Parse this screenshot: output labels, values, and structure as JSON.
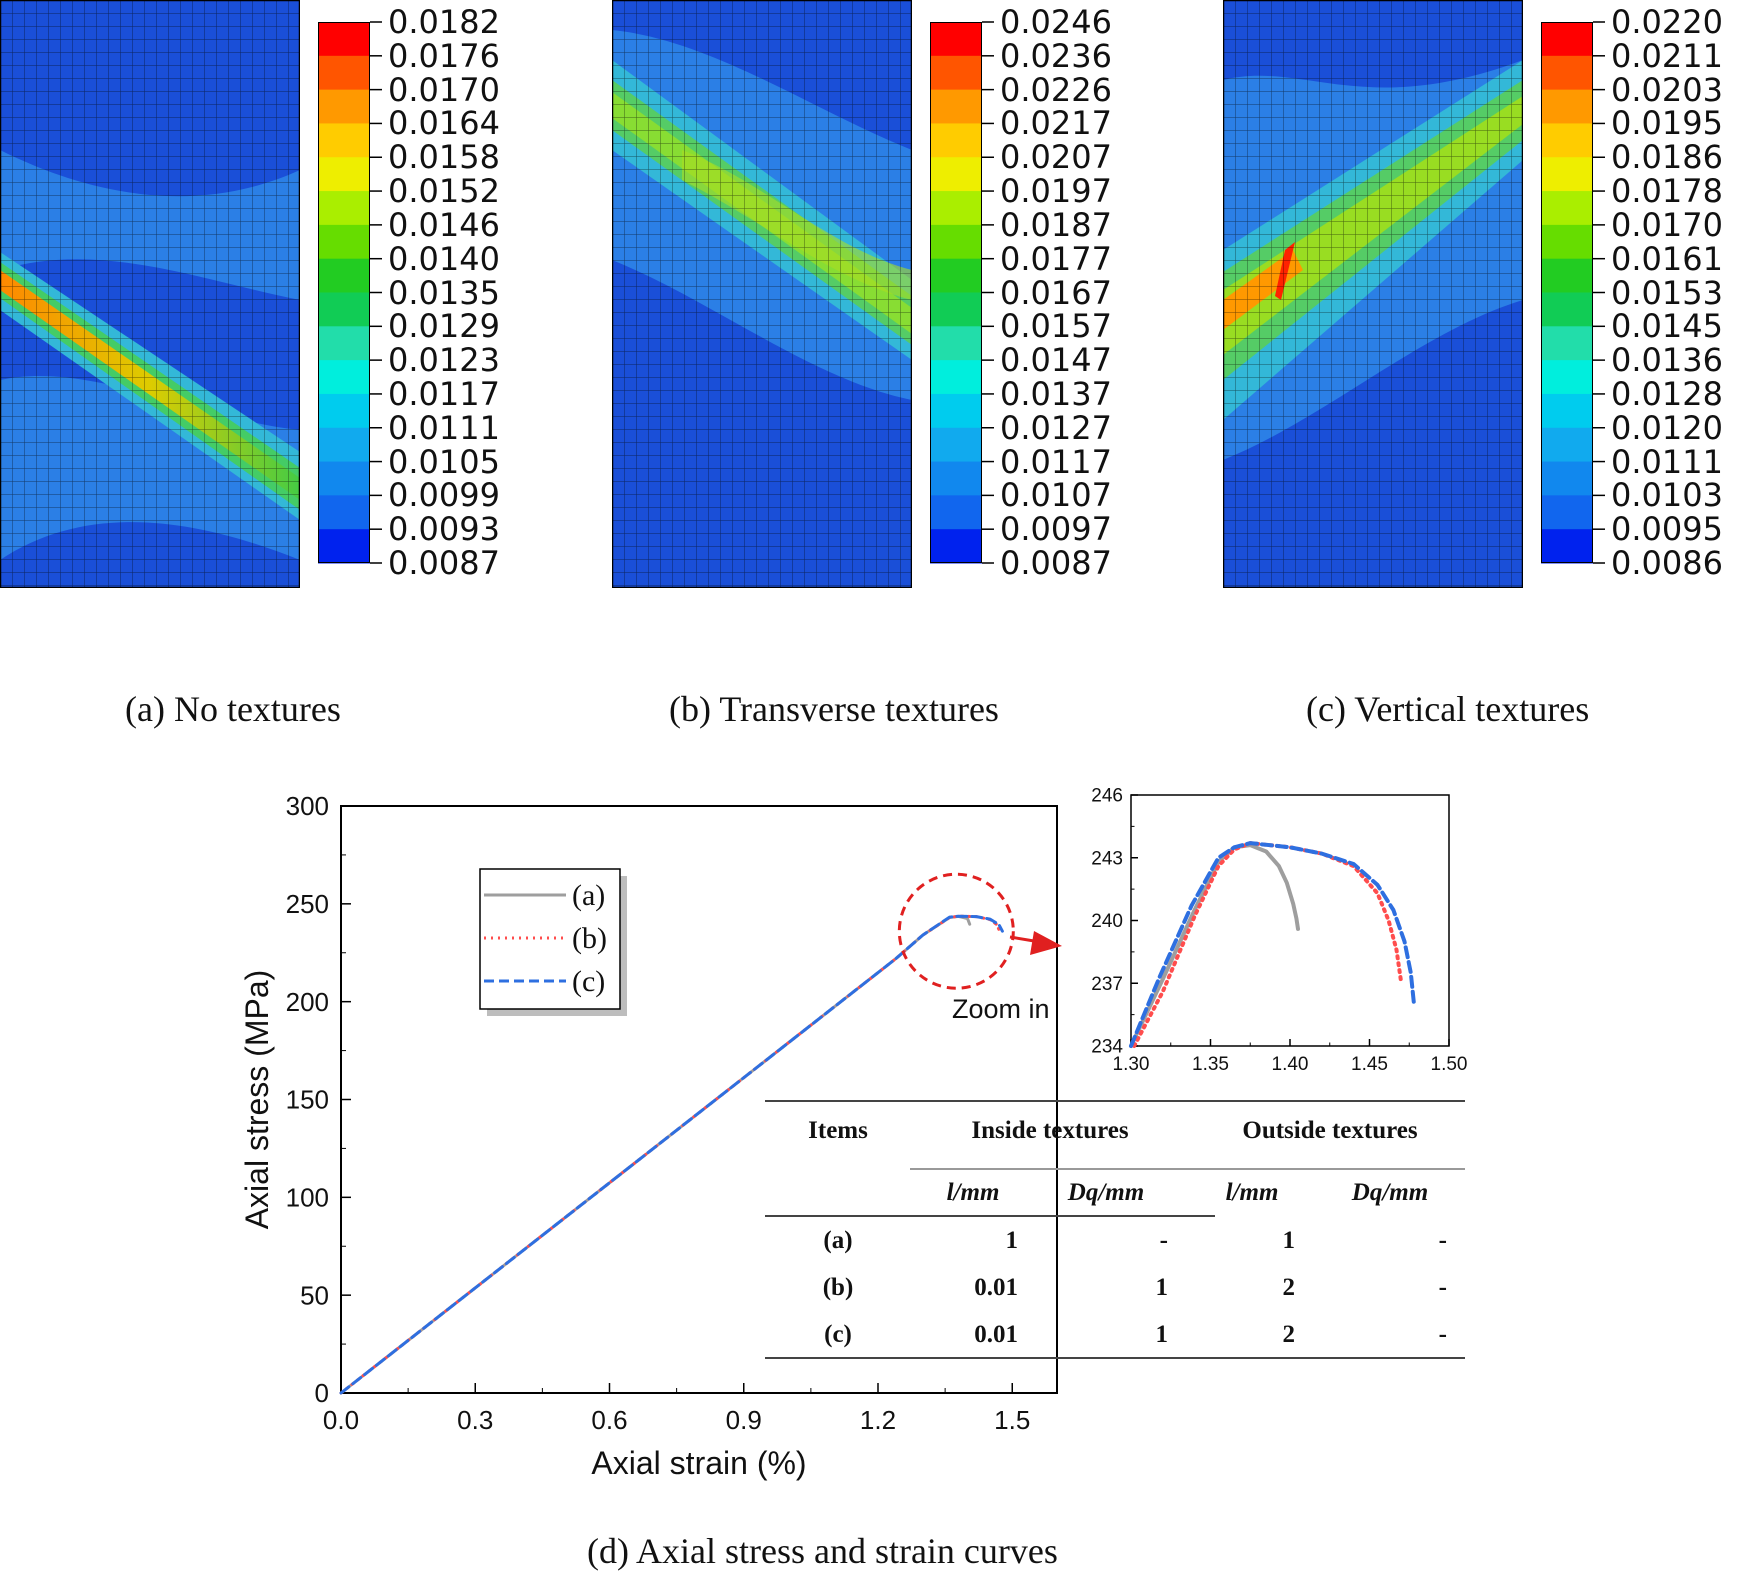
{
  "panels": [
    {
      "id": "a",
      "caption": "(a) No textures",
      "colorbar_labels": [
        "0.0182",
        "0.0176",
        "0.0170",
        "0.0164",
        "0.0158",
        "0.0152",
        "0.0146",
        "0.0140",
        "0.0135",
        "0.0129",
        "0.0123",
        "0.0117",
        "0.0111",
        "0.0105",
        "0.0099",
        "0.0093",
        "0.0087"
      ]
    },
    {
      "id": "b",
      "caption": "(b) Transverse textures",
      "colorbar_labels": [
        "0.0246",
        "0.0236",
        "0.0226",
        "0.0217",
        "0.0207",
        "0.0197",
        "0.0187",
        "0.0177",
        "0.0167",
        "0.0157",
        "0.0147",
        "0.0137",
        "0.0127",
        "0.0117",
        "0.0107",
        "0.0097",
        "0.0087"
      ]
    },
    {
      "id": "c",
      "caption": "(c) Vertical textures",
      "colorbar_labels": [
        "0.0220",
        "0.0211",
        "0.0203",
        "0.0195",
        "0.0186",
        "0.0178",
        "0.0170",
        "0.0161",
        "0.0153",
        "0.0145",
        "0.0136",
        "0.0128",
        "0.0120",
        "0.0111",
        "0.0103",
        "0.0095",
        "0.0086"
      ]
    }
  ],
  "colorbar_colors": [
    "#ff0000",
    "#ff5500",
    "#ff9900",
    "#ffcc00",
    "#eeee00",
    "#aaee00",
    "#66dd00",
    "#22cc22",
    "#11cc55",
    "#22ddaa",
    "#00eedd",
    "#00ccee",
    "#11aaee",
    "#1188ee",
    "#1166ee",
    "#0022ee"
  ],
  "caption_d": "(d) Axial stress and strain curves",
  "chart_data": [
    {
      "type": "line",
      "title": "",
      "xlabel": "Axial strain (%)",
      "ylabel": "Axial stress (MPa)",
      "xlim": [
        0,
        1.6
      ],
      "ylim": [
        0,
        300
      ],
      "xticks": [
        "0.0",
        "0.3",
        "0.6",
        "0.9",
        "1.2",
        "1.5"
      ],
      "yticks": [
        "0",
        "50",
        "100",
        "150",
        "200",
        "250",
        "300"
      ],
      "legend": [
        "(a)",
        "(b)",
        "(c)"
      ],
      "annotation": "Zoom in",
      "series": [
        {
          "name": "(a)",
          "color": "#9e9e9e",
          "style": "solid",
          "x": [
            0,
            1.24,
            1.3,
            1.36,
            1.38,
            1.4,
            1.405
          ],
          "y": [
            0,
            222,
            234,
            243,
            243.6,
            242.5,
            239.6
          ]
        },
        {
          "name": "(b)",
          "color": "#ff4d4d",
          "style": "dotted",
          "x": [
            0,
            1.24,
            1.3,
            1.36,
            1.38,
            1.42,
            1.45,
            1.465,
            1.47
          ],
          "y": [
            0,
            222,
            234,
            243,
            243.7,
            243.5,
            242.0,
            239.5,
            237.0
          ]
        },
        {
          "name": "(c)",
          "color": "#2e6fe0",
          "style": "dashed",
          "x": [
            0,
            1.24,
            1.3,
            1.36,
            1.38,
            1.42,
            1.45,
            1.47,
            1.478
          ],
          "y": [
            0,
            222,
            234,
            243.2,
            243.7,
            243.5,
            242.2,
            239.5,
            236.0
          ]
        }
      ]
    },
    {
      "type": "line",
      "title": "",
      "xlabel": "",
      "ylabel": "",
      "xlim": [
        1.3,
        1.5
      ],
      "ylim": [
        234,
        246
      ],
      "xticks": [
        "1.30",
        "1.35",
        "1.40",
        "1.45",
        "1.50"
      ],
      "yticks": [
        "234",
        "237",
        "240",
        "243",
        "246"
      ],
      "series": [
        {
          "name": "(a)",
          "color": "#9e9e9e",
          "style": "solid",
          "x": [
            1.3,
            1.32,
            1.34,
            1.355,
            1.365,
            1.375,
            1.385,
            1.393,
            1.398,
            1.402,
            1.404,
            1.405
          ],
          "y": [
            234,
            237.2,
            240.5,
            242.8,
            243.5,
            243.6,
            243.3,
            242.6,
            241.8,
            240.8,
            240.1,
            239.6
          ]
        },
        {
          "name": "(b)",
          "color": "#ff4d4d",
          "style": "dotted",
          "x": [
            1.302,
            1.32,
            1.34,
            1.355,
            1.365,
            1.375,
            1.4,
            1.42,
            1.44,
            1.455,
            1.462,
            1.467,
            1.47
          ],
          "y": [
            234,
            236.6,
            240.2,
            242.6,
            243.4,
            243.7,
            243.5,
            243.2,
            242.6,
            241.3,
            240.0,
            238.6,
            237.0
          ]
        },
        {
          "name": "(c)",
          "color": "#2e6fe0",
          "style": "dashed",
          "x": [
            1.3,
            1.318,
            1.338,
            1.355,
            1.365,
            1.375,
            1.4,
            1.42,
            1.44,
            1.455,
            1.465,
            1.472,
            1.476,
            1.478
          ],
          "y": [
            234,
            237.3,
            240.7,
            243.0,
            243.5,
            243.7,
            243.5,
            243.2,
            242.7,
            241.7,
            240.5,
            239.0,
            237.5,
            236.0
          ]
        }
      ]
    }
  ],
  "table": {
    "header": [
      "Items",
      "Inside textures",
      "Outside textures"
    ],
    "subheader": [
      "",
      "l/mm",
      "Dq/mm",
      "l/mm",
      "Dq/mm"
    ],
    "rows": [
      [
        "(a)",
        "1",
        "-",
        "1",
        "-"
      ],
      [
        "(b)",
        "0.01",
        "1",
        "2",
        "-"
      ],
      [
        "(c)",
        "0.01",
        "1",
        "2",
        "-"
      ]
    ]
  }
}
